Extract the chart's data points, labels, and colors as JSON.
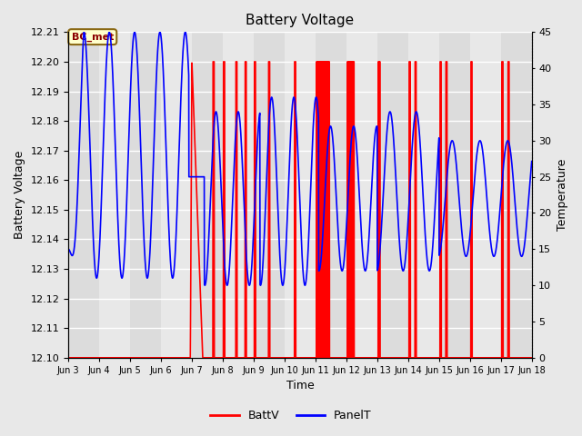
{
  "title": "Battery Voltage",
  "ylabel_left": "Battery Voltage",
  "ylabel_right": "Temperature",
  "xlabel": "Time",
  "ylim_left": [
    12.1,
    12.21
  ],
  "ylim_right": [
    0,
    45
  ],
  "annotation_text": "BC_met",
  "annotation_bg": "#FFFFCC",
  "annotation_border": "#8B6914",
  "bg_color": "#E8E8E8",
  "plot_bg_color": "#F0F0F0",
  "grid_color": "white",
  "batt_color": "red",
  "panel_color": "blue",
  "x_tick_labels": [
    "Jun 3",
    "Jun 4",
    "Jun 5",
    "Jun 6",
    "Jun 7",
    "Jun 8",
    "Jun 9",
    "Jun 10",
    "Jun 11",
    "Jun 12",
    "Jun 13",
    "Jun 14",
    "Jun 15",
    "Jun 16",
    "Jun 17",
    "Jun 18"
  ],
  "x_tick_positions": [
    3,
    4,
    5,
    6,
    7,
    8,
    9,
    10,
    11,
    12,
    13,
    14,
    15,
    16,
    17,
    18
  ],
  "yticks_left": [
    12.1,
    12.11,
    12.12,
    12.13,
    12.14,
    12.15,
    12.16,
    12.17,
    12.18,
    12.19,
    12.2,
    12.21
  ],
  "yticks_right": [
    0,
    5,
    10,
    15,
    20,
    25,
    30,
    35,
    40,
    45
  ],
  "band_colors": [
    "#DCDCDC",
    "#E8E8E8"
  ]
}
